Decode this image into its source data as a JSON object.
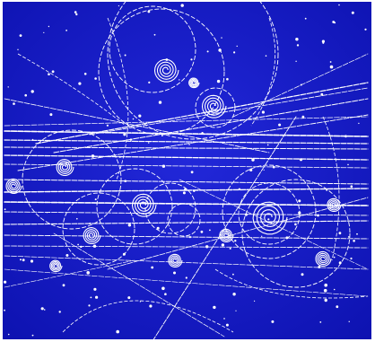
{
  "image": {
    "subject": "bubble-chamber-particle-tracks",
    "colors": {
      "background": "#1a1fd0",
      "background_dark": "#0b10a8",
      "tracks": "#ffffff",
      "frame": "#ffffff"
    }
  }
}
